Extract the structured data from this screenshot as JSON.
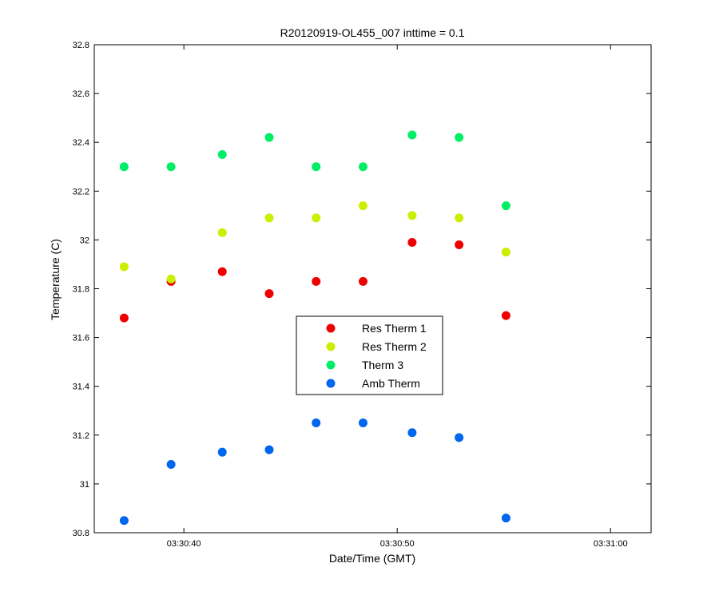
{
  "chart_data": {
    "type": "scatter",
    "title": "R20120919-OL455_007 inttime = 0.1",
    "xlabel": "Date/Time (GMT)",
    "ylabel": "Temperature (C)",
    "x_unit": "time",
    "xlim": [
      "03:30:35.8",
      "03:31:01.9"
    ],
    "ylim": [
      30.8,
      32.8
    ],
    "x_ticks": [
      "03:30:40",
      "03:30:50",
      "03:31:00"
    ],
    "y_ticks": [
      "30.8",
      "31",
      "31.2",
      "31.4",
      "31.6",
      "31.8",
      "32",
      "32.2",
      "32.4",
      "32.6",
      "32.8"
    ],
    "x": [
      "03:30:37.2",
      "03:30:39.4",
      "03:30:41.8",
      "03:30:44.0",
      "03:30:46.2",
      "03:30:48.4",
      "03:30:50.7",
      "03:30:52.9",
      "03:30:55.1"
    ],
    "series": [
      {
        "name": "Res Therm 1",
        "color": "#ee0000",
        "values": [
          31.68,
          31.83,
          31.87,
          31.78,
          31.83,
          31.83,
          31.99,
          31.98,
          31.69
        ]
      },
      {
        "name": "Res Therm 2",
        "color": "#ccee00",
        "values": [
          31.89,
          31.84,
          32.03,
          32.09,
          32.09,
          32.14,
          32.1,
          32.09,
          31.95
        ]
      },
      {
        "name": "Therm 3",
        "color": "#00ee66",
        "values": [
          32.3,
          32.3,
          32.35,
          32.42,
          32.3,
          32.3,
          32.43,
          32.42,
          32.14
        ]
      },
      {
        "name": "Amb Therm",
        "color": "#0066ee",
        "values": [
          30.85,
          31.08,
          31.13,
          31.14,
          31.25,
          31.25,
          31.21,
          31.19,
          30.86
        ]
      }
    ],
    "grid": false,
    "legend_position": "center"
  }
}
